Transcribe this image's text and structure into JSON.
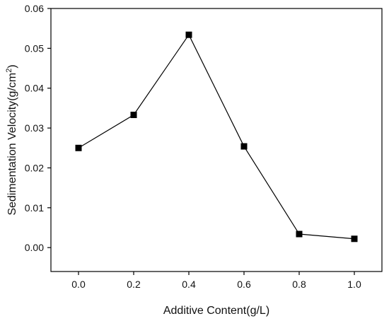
{
  "chart_data": {
    "type": "line",
    "title": "",
    "xlabel": "Additive Content(g/L)",
    "ylabel": {
      "main": "Sedimentation Velocity(g/cm",
      "superscript": "2",
      "suffix": ")"
    },
    "x": [
      0.0,
      0.2,
      0.4,
      0.6,
      0.8,
      1.0
    ],
    "y": [
      0.025,
      0.0333,
      0.0534,
      0.0254,
      0.0034,
      0.0022
    ],
    "xlim": [
      -0.1,
      1.1
    ],
    "ylim": [
      -0.006,
      0.06
    ],
    "xticks": [
      "0.0",
      "0.2",
      "0.4",
      "0.6",
      "0.8",
      "1.0"
    ],
    "yticks": [
      "0.00",
      "0.01",
      "0.02",
      "0.03",
      "0.04",
      "0.05",
      "0.06"
    ],
    "grid": false,
    "legend": "none",
    "line_color": "#000000",
    "marker": "square"
  }
}
